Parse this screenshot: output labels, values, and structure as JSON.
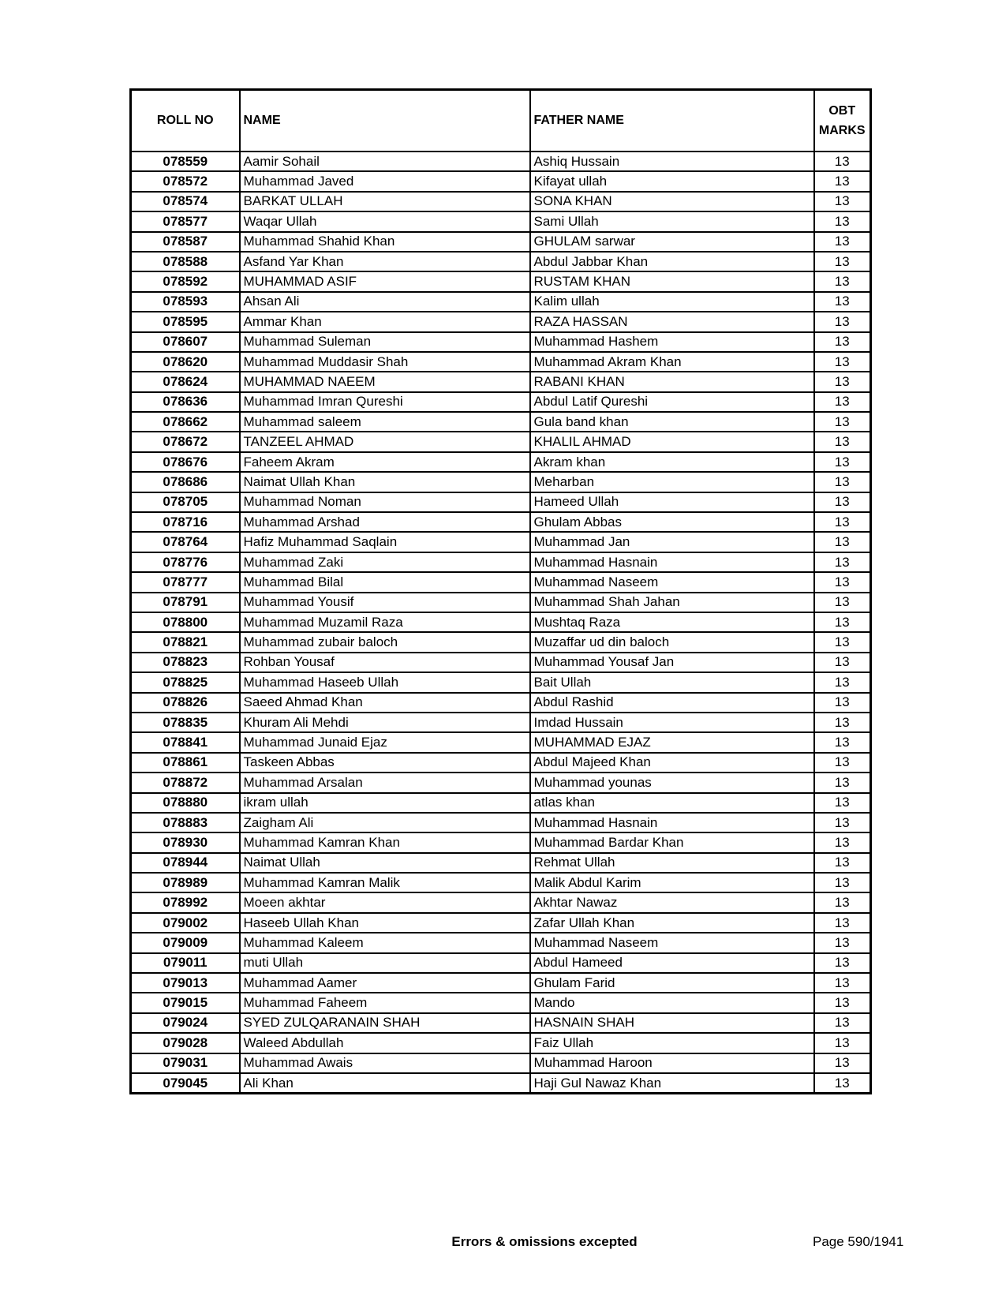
{
  "table": {
    "headers": {
      "roll_no": "ROLL NO",
      "name": "NAME",
      "father_name": "FATHER NAME",
      "obt": "OBT",
      "marks": "MARKS"
    },
    "rows": [
      [
        "078559",
        "Aamir Sohail",
        "Ashiq Hussain",
        "13"
      ],
      [
        "078572",
        "Muhammad Javed",
        "Kifayat ullah",
        "13"
      ],
      [
        "078574",
        "BARKAT ULLAH",
        "SONA KHAN",
        "13"
      ],
      [
        "078577",
        "Waqar Ullah",
        "Sami Ullah",
        "13"
      ],
      [
        "078587",
        "Muhammad Shahid Khan",
        "GHULAM sarwar",
        "13"
      ],
      [
        "078588",
        "Asfand Yar Khan",
        "Abdul Jabbar Khan",
        "13"
      ],
      [
        "078592",
        "MUHAMMAD ASIF",
        "RUSTAM KHAN",
        "13"
      ],
      [
        "078593",
        "Ahsan Ali",
        "Kalim ullah",
        "13"
      ],
      [
        "078595",
        "Ammar Khan",
        "RAZA HASSAN",
        "13"
      ],
      [
        "078607",
        "Muhammad Suleman",
        "Muhammad Hashem",
        "13"
      ],
      [
        "078620",
        "Muhammad Muddasir Shah",
        "Muhammad Akram Khan",
        "13"
      ],
      [
        "078624",
        "MUHAMMAD NAEEM",
        "RABANI KHAN",
        "13"
      ],
      [
        "078636",
        "Muhammad Imran Qureshi",
        "Abdul Latif Qureshi",
        "13"
      ],
      [
        "078662",
        "Muhammad saleem",
        "Gula band khan",
        "13"
      ],
      [
        "078672",
        "TANZEEL AHMAD",
        "KHALIL AHMAD",
        "13"
      ],
      [
        "078676",
        "Faheem Akram",
        "Akram khan",
        "13"
      ],
      [
        "078686",
        "Naimat Ullah Khan",
        "Meharban",
        "13"
      ],
      [
        "078705",
        "Muhammad Noman",
        "Hameed Ullah",
        "13"
      ],
      [
        "078716",
        "Muhammad Arshad",
        "Ghulam Abbas",
        "13"
      ],
      [
        "078764",
        "Hafiz Muhammad Saqlain",
        "Muhammad Jan",
        "13"
      ],
      [
        "078776",
        "Muhammad Zaki",
        "Muhammad Hasnain",
        "13"
      ],
      [
        "078777",
        "Muhammad Bilal",
        "Muhammad Naseem",
        "13"
      ],
      [
        "078791",
        "Muhammad Yousif",
        "Muhammad Shah Jahan",
        "13"
      ],
      [
        "078800",
        "Muhammad Muzamil Raza",
        "Mushtaq Raza",
        "13"
      ],
      [
        "078821",
        "Muhammad zubair baloch",
        "Muzaffar ud din baloch",
        "13"
      ],
      [
        "078823",
        "Rohban Yousaf",
        "Muhammad Yousaf Jan",
        "13"
      ],
      [
        "078825",
        "Muhammad Haseeb Ullah",
        "Bait Ullah",
        "13"
      ],
      [
        "078826",
        "Saeed Ahmad Khan",
        "Abdul Rashid",
        "13"
      ],
      [
        "078835",
        "Khuram Ali Mehdi",
        "Imdad Hussain",
        "13"
      ],
      [
        "078841",
        "Muhammad Junaid Ejaz",
        "MUHAMMAD EJAZ",
        "13"
      ],
      [
        "078861",
        "Taskeen Abbas",
        "Abdul Majeed Khan",
        "13"
      ],
      [
        "078872",
        "Muhammad Arsalan",
        "Muhammad younas",
        "13"
      ],
      [
        "078880",
        "ikram ullah",
        "atlas khan",
        "13"
      ],
      [
        "078883",
        "Zaigham Ali",
        "Muhammad Hasnain",
        "13"
      ],
      [
        "078930",
        "Muhammad Kamran Khan",
        "Muhammad Bardar Khan",
        "13"
      ],
      [
        "078944",
        "Naimat Ullah",
        "Rehmat Ullah",
        "13"
      ],
      [
        "078989",
        "Muhammad Kamran Malik",
        "Malik Abdul Karim",
        "13"
      ],
      [
        "078992",
        "Moeen akhtar",
        "Akhtar Nawaz",
        "13"
      ],
      [
        "079002",
        "Haseeb Ullah Khan",
        "Zafar Ullah Khan",
        "13"
      ],
      [
        "079009",
        "Muhammad Kaleem",
        "Muhammad Naseem",
        "13"
      ],
      [
        "079011",
        "muti Ullah",
        "Abdul Hameed",
        "13"
      ],
      [
        "079013",
        "Muhammad Aamer",
        "Ghulam Farid",
        "13"
      ],
      [
        "079015",
        "Muhammad Faheem",
        "Mando",
        "13"
      ],
      [
        "079024",
        "SYED ZULQARANAIN SHAH",
        "HASNAIN SHAH",
        "13"
      ],
      [
        "079028",
        "Waleed Abdullah",
        "Faiz Ullah",
        "13"
      ],
      [
        "079031",
        "Muhammad Awais",
        "Muhammad Haroon",
        "13"
      ],
      [
        "079045",
        "Ali Khan",
        "Haji Gul Nawaz Khan",
        "13"
      ]
    ]
  },
  "footer": {
    "note": "Errors & omissions excepted",
    "page": "Page 590/1941"
  }
}
